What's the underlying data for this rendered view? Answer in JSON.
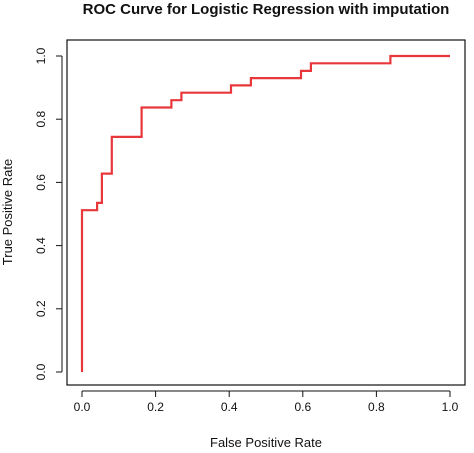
{
  "chart_data": {
    "type": "line",
    "title": "ROC Curve for Logistic Regression with imputation",
    "xlabel": "False Positive Rate",
    "ylabel": "True Positive Rate",
    "xlim": [
      0,
      1
    ],
    "ylim": [
      0,
      1
    ],
    "xticks": [
      "0.0",
      "0.2",
      "0.4",
      "0.6",
      "0.8",
      "1.0"
    ],
    "yticks": [
      "0.0",
      "0.2",
      "0.4",
      "0.6",
      "0.8",
      "1.0"
    ],
    "grid": false,
    "legend": "none",
    "series": [
      {
        "color": "#e8373b",
        "x": [
          0.0,
          0.0,
          0.027,
          0.027,
          0.041,
          0.041,
          0.054,
          0.054,
          0.068,
          0.068,
          0.081,
          0.081,
          0.162,
          0.162,
          0.243,
          0.243,
          0.257,
          0.257,
          0.27,
          0.27,
          0.405,
          0.405,
          0.459,
          0.459,
          0.595,
          0.595,
          0.622,
          0.622,
          0.838,
          0.838,
          1.0
        ],
        "y": [
          0.0,
          0.512,
          0.512,
          0.512,
          0.512,
          0.535,
          0.535,
          0.628,
          0.628,
          0.628,
          0.628,
          0.744,
          0.744,
          0.837,
          0.837,
          0.86,
          0.86,
          0.86,
          0.86,
          0.884,
          0.884,
          0.907,
          0.907,
          0.93,
          0.93,
          0.953,
          0.953,
          0.977,
          0.977,
          1.0,
          1.0
        ]
      }
    ]
  }
}
